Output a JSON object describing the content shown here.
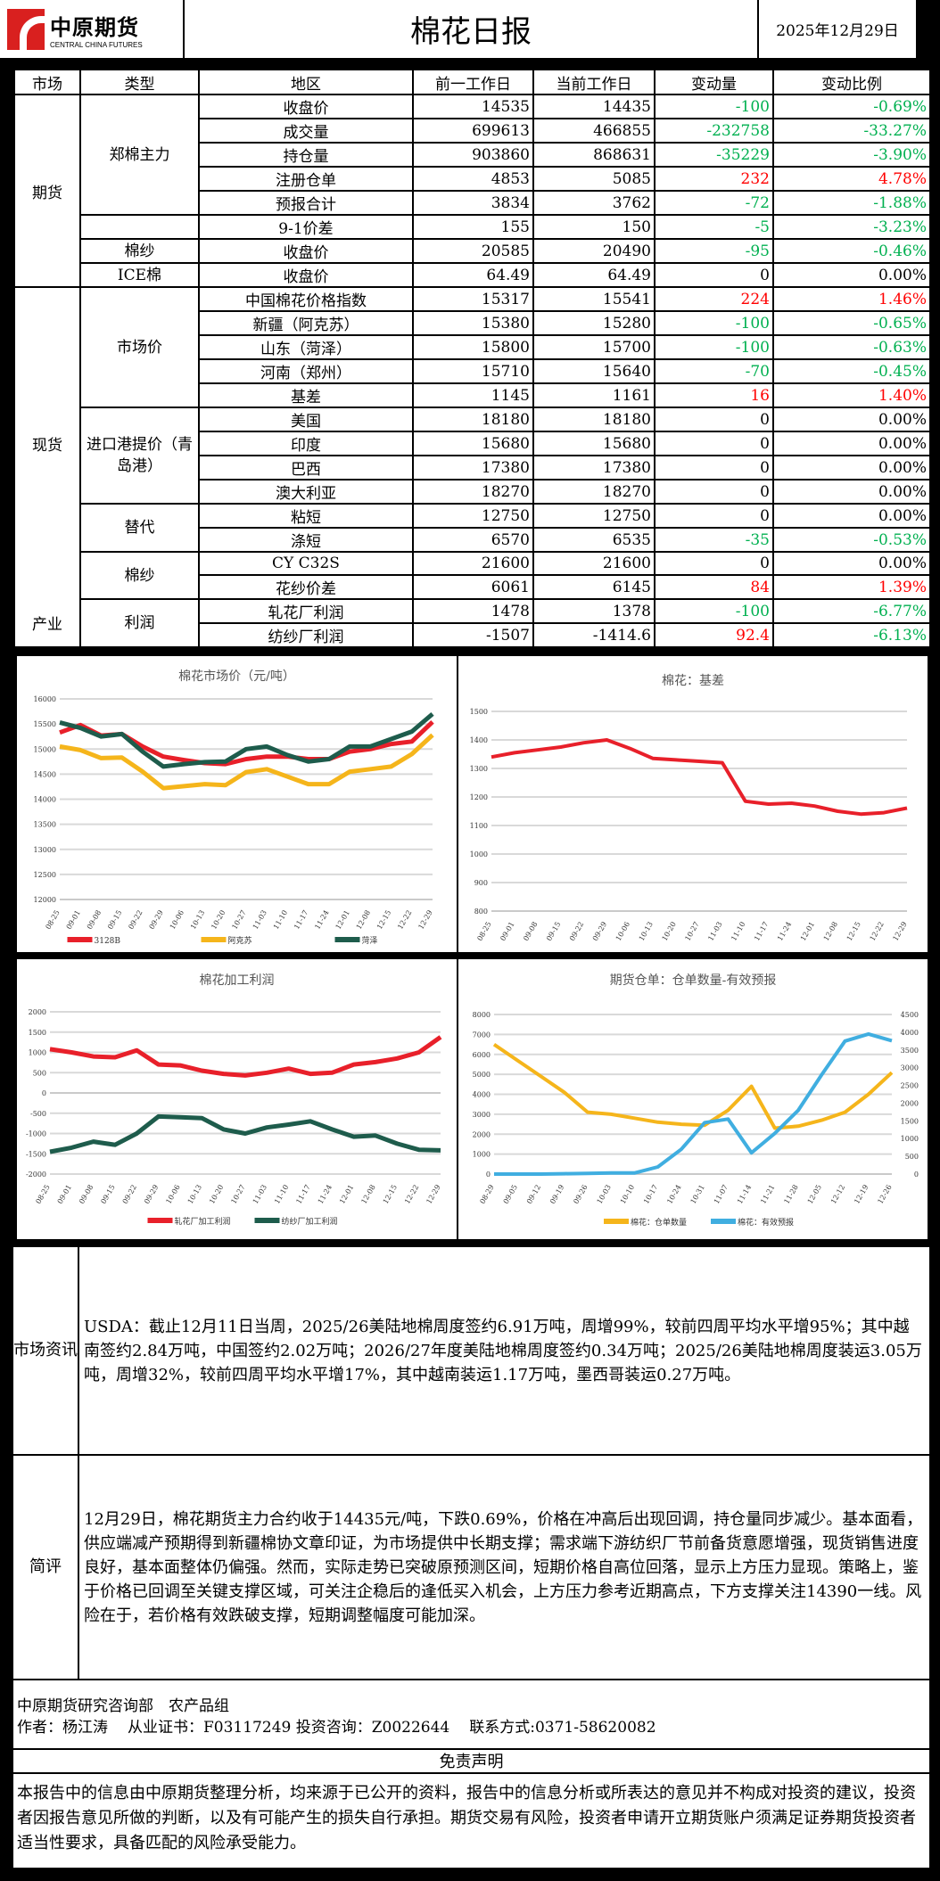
{
  "header": {
    "logo_cn": "中原期货",
    "logo_en": "CENTRAL CHINA FUTURES",
    "title": "棉花日报",
    "date": "2025年12月29日"
  },
  "colors": {
    "up": "#ff0000",
    "down": "#00b050",
    "red": "#e8202a",
    "yellow": "#f5b51b",
    "green": "#1e5c4c",
    "blue": "#40aee0"
  },
  "table": {
    "columns": [
      "市场",
      "类型",
      "地区",
      "前一工作日",
      "当前工作日",
      "变动量",
      "变动比例"
    ],
    "markets": [
      {
        "label": "期货",
        "span": 8
      },
      {
        "label": "现货",
        "span": 13
      },
      {
        "label": "产业",
        "span": 2
      }
    ],
    "types": [
      {
        "label": "郑棉主力",
        "span": 5
      },
      {
        "label": "",
        "span": 1
      },
      {
        "label": "棉纱",
        "span": 1
      },
      {
        "label": "ICE棉",
        "span": 1
      },
      {
        "label": "市场价",
        "span": 5
      },
      {
        "label": "进口港提价（青岛港）",
        "span": 4
      },
      {
        "label": "替代",
        "span": 2
      },
      {
        "label": "棉纱",
        "span": 2
      },
      {
        "label": "利润",
        "span": 2
      }
    ],
    "rows": [
      {
        "region": "收盘价",
        "prev": "14535",
        "curr": "14435",
        "change": "-100",
        "pct": "-0.69%",
        "dir": "down"
      },
      {
        "region": "成交量",
        "prev": "699613",
        "curr": "466855",
        "change": "-232758",
        "pct": "-33.27%",
        "dir": "down"
      },
      {
        "region": "持仓量",
        "prev": "903860",
        "curr": "868631",
        "change": "-35229",
        "pct": "-3.90%",
        "dir": "down"
      },
      {
        "region": "注册仓单",
        "prev": "4853",
        "curr": "5085",
        "change": "232",
        "pct": "4.78%",
        "dir": "up"
      },
      {
        "region": "预报合计",
        "prev": "3834",
        "curr": "3762",
        "change": "-72",
        "pct": "-1.88%",
        "dir": "down"
      },
      {
        "region": "9-1价差",
        "prev": "155",
        "curr": "150",
        "change": "-5",
        "pct": "-3.23%",
        "dir": "down"
      },
      {
        "region": "收盘价",
        "prev": "20585",
        "curr": "20490",
        "change": "-95",
        "pct": "-0.46%",
        "dir": "down"
      },
      {
        "region": "收盘价",
        "prev": "64.49",
        "curr": "64.49",
        "change": "0",
        "pct": "0.00%",
        "dir": "flat"
      },
      {
        "region": "中国棉花价格指数",
        "prev": "15317",
        "curr": "15541",
        "change": "224",
        "pct": "1.46%",
        "dir": "up"
      },
      {
        "region": "新疆（阿克苏）",
        "prev": "15380",
        "curr": "15280",
        "change": "-100",
        "pct": "-0.65%",
        "dir": "down"
      },
      {
        "region": "山东（菏泽）",
        "prev": "15800",
        "curr": "15700",
        "change": "-100",
        "pct": "-0.63%",
        "dir": "down"
      },
      {
        "region": "河南（郑州）",
        "prev": "15710",
        "curr": "15640",
        "change": "-70",
        "pct": "-0.45%",
        "dir": "down"
      },
      {
        "region": "基差",
        "prev": "1145",
        "curr": "1161",
        "change": "16",
        "pct": "1.40%",
        "dir": "up"
      },
      {
        "region": "美国",
        "prev": "18180",
        "curr": "18180",
        "change": "0",
        "pct": "0.00%",
        "dir": "flat"
      },
      {
        "region": "印度",
        "prev": "15680",
        "curr": "15680",
        "change": "0",
        "pct": "0.00%",
        "dir": "flat"
      },
      {
        "region": "巴西",
        "prev": "17380",
        "curr": "17380",
        "change": "0",
        "pct": "0.00%",
        "dir": "flat"
      },
      {
        "region": "澳大利亚",
        "prev": "18270",
        "curr": "18270",
        "change": "0",
        "pct": "0.00%",
        "dir": "flat"
      },
      {
        "region": "粘短",
        "prev": "12750",
        "curr": "12750",
        "change": "0",
        "pct": "0.00%",
        "dir": "flat"
      },
      {
        "region": "涤短",
        "prev": "6570",
        "curr": "6535",
        "change": "-35",
        "pct": "-0.53%",
        "dir": "down"
      },
      {
        "region": "CY C32S",
        "prev": "21600",
        "curr": "21600",
        "change": "0",
        "pct": "0.00%",
        "dir": "flat"
      },
      {
        "region": "花纱价差",
        "prev": "6061",
        "curr": "6145",
        "change": "84",
        "pct": "1.39%",
        "dir": "up"
      },
      {
        "region": "轧花厂利润",
        "prev": "1478",
        "curr": "1378",
        "change": "-100",
        "pct": "-6.77%",
        "dir": "down"
      },
      {
        "region": "纺纱厂利润",
        "prev": "-1507",
        "curr": "-1414.6",
        "change": "92.4",
        "pct": "-6.13%",
        "dir": "up"
      }
    ]
  },
  "chart_data": [
    {
      "type": "line",
      "title": "棉花市场价（元/吨）",
      "ylim": [
        12000,
        16000
      ],
      "ystep": 500,
      "legend": "bottom",
      "x": [
        "08-25",
        "09-01",
        "09-08",
        "09-15",
        "09-22",
        "09-29",
        "10-06",
        "10-13",
        "10-20",
        "10-27",
        "11-03",
        "11-10",
        "11-17",
        "11-24",
        "12-01",
        "12-08",
        "12-15",
        "12-22",
        "12-29"
      ],
      "series": [
        {
          "name": "3128B",
          "color": "#e8202a",
          "values": [
            15330,
            15480,
            15270,
            15300,
            15050,
            14850,
            14780,
            14720,
            14700,
            14800,
            14850,
            14850,
            14800,
            14800,
            14950,
            15000,
            15100,
            15150,
            15541
          ]
        },
        {
          "name": "阿克苏",
          "color": "#f5b51b",
          "values": [
            15050,
            14980,
            14820,
            14830,
            14550,
            14220,
            14260,
            14300,
            14280,
            14540,
            14600,
            14450,
            14300,
            14300,
            14550,
            14600,
            14650,
            14900,
            15280
          ]
        },
        {
          "name": "菏泽",
          "color": "#1e5c4c",
          "values": [
            15530,
            15420,
            15250,
            15300,
            14950,
            14650,
            14700,
            14740,
            14750,
            15000,
            15050,
            14880,
            14750,
            14800,
            15050,
            15050,
            15200,
            15350,
            15700
          ]
        }
      ]
    },
    {
      "type": "line",
      "title": "棉花：基差",
      "ylim": [
        800,
        1500
      ],
      "ystep": 100,
      "legend": "none",
      "x": [
        "08-25",
        "09-01",
        "09-08",
        "09-15",
        "09-22",
        "09-29",
        "10-06",
        "10-13",
        "10-20",
        "10-27",
        "11-03",
        "11-10",
        "11-17",
        "11-24",
        "12-01",
        "12-08",
        "12-15",
        "12-22",
        "12-29"
      ],
      "series": [
        {
          "name": "基差",
          "color": "#e8202a",
          "values": [
            1340,
            1355,
            1365,
            1375,
            1390,
            1400,
            1370,
            1335,
            1330,
            1325,
            1320,
            1185,
            1175,
            1178,
            1168,
            1150,
            1140,
            1145,
            1161
          ]
        }
      ]
    },
    {
      "type": "line",
      "title": "棉花加工利润",
      "ylim": [
        -2000,
        2000
      ],
      "ystep": 500,
      "legend": "bottom",
      "x": [
        "08-25",
        "09-01",
        "09-08",
        "09-15",
        "09-22",
        "09-29",
        "10-06",
        "10-13",
        "10-20",
        "10-27",
        "11-03",
        "11-10",
        "11-17",
        "11-24",
        "12-01",
        "12-08",
        "12-15",
        "12-22",
        "12-29"
      ],
      "series": [
        {
          "name": "轧花厂加工利润",
          "color": "#e8202a",
          "values": [
            1080,
            1000,
            900,
            880,
            1050,
            700,
            680,
            550,
            470,
            430,
            500,
            600,
            470,
            500,
            700,
            760,
            850,
            1000,
            1378
          ]
        },
        {
          "name": "纺纱厂加工利润",
          "color": "#1e5c4c",
          "values": [
            -1450,
            -1350,
            -1200,
            -1280,
            -1000,
            -580,
            -600,
            -620,
            -900,
            -1000,
            -850,
            -780,
            -700,
            -900,
            -1080,
            -1050,
            -1250,
            -1400,
            -1415
          ]
        }
      ]
    },
    {
      "type": "line",
      "title": "期货仓单：仓单数量-有效预报",
      "ylim": [
        0,
        8000
      ],
      "ystep": 1000,
      "y2lim": [
        0,
        4500
      ],
      "y2step": 500,
      "legend": "bottom",
      "x": [
        "08-29",
        "09-05",
        "09-12",
        "09-19",
        "09-26",
        "10-03",
        "10-10",
        "10-17",
        "10-24",
        "10-31",
        "11-07",
        "11-14",
        "11-21",
        "11-28",
        "12-05",
        "12-12",
        "12-19",
        "12-26"
      ],
      "series": [
        {
          "name": "棉花：仓单数量",
          "color": "#f5b51b",
          "axis": "left",
          "values": [
            6500,
            5700,
            4900,
            4100,
            3100,
            3000,
            2800,
            2600,
            2500,
            2450,
            3200,
            4400,
            2300,
            2400,
            2700,
            3100,
            4000,
            5085
          ]
        },
        {
          "name": "棉花：有效预报",
          "color": "#40aee0",
          "axis": "right",
          "values": [
            0,
            0,
            0,
            10,
            20,
            30,
            30,
            200,
            700,
            1450,
            1550,
            600,
            1150,
            1800,
            2800,
            3750,
            3950,
            3762
          ]
        }
      ]
    }
  ],
  "info": {
    "label": "市场资讯",
    "text": "USDA：截止12月11日当周，2025/26美陆地棉周度签约6.91万吨，周增99%，较前四周平均水平增95%；其中越南签约2.84万吨，中国签约2.02万吨；2026/27年度美陆地棉周度签约0.34万吨；2025/26美陆地棉周度装运3.05万吨，周增32%，较前四周平均水平增17%，其中越南装运1.17万吨，墨西哥装运0.27万吨。"
  },
  "comment": {
    "label": "简评",
    "text": "12月29日，棉花期货主力合约收于14435元/吨，下跌0.69%，价格在冲高后出现回调，持仓量同步减少。基本面看，供应端减产预期得到新疆棉协文章印证，为市场提供中长期支撑；需求端下游纺织厂节前备货意愿增强，现货销售进度良好，基本面整体仍偏强。然而，实际走势已突破原预测区间，短期价格自高位回落，显示上方压力显现。策略上，鉴于价格已回调至关键支撑区域，可关注企稳后的逢低买入机会，上方压力参考近期高点，下方支撑关注14390一线。风险在于，若价格有效跌破支撑，短期调整幅度可能加深。"
  },
  "footer": {
    "dept": "中原期货研究咨询部　农产品组",
    "author": "作者：杨江涛",
    "cert": "从业证书：F03117249 投资咨询：Z0022644",
    "contact": "联系方式:0371-58620082"
  },
  "disclaimer": {
    "title": "免责声明",
    "text": "本报告中的信息由中原期货整理分析，均来源于已公开的资料，报告中的信息分析或所表达的意见并不构成对投资的建议，投资者因报告意见所做的判断，以及有可能产生的损失自行承担。期货交易有风险，投资者申请开立期货账户须满足证券期货投资者适当性要求，具备匹配的风险承受能力。"
  }
}
